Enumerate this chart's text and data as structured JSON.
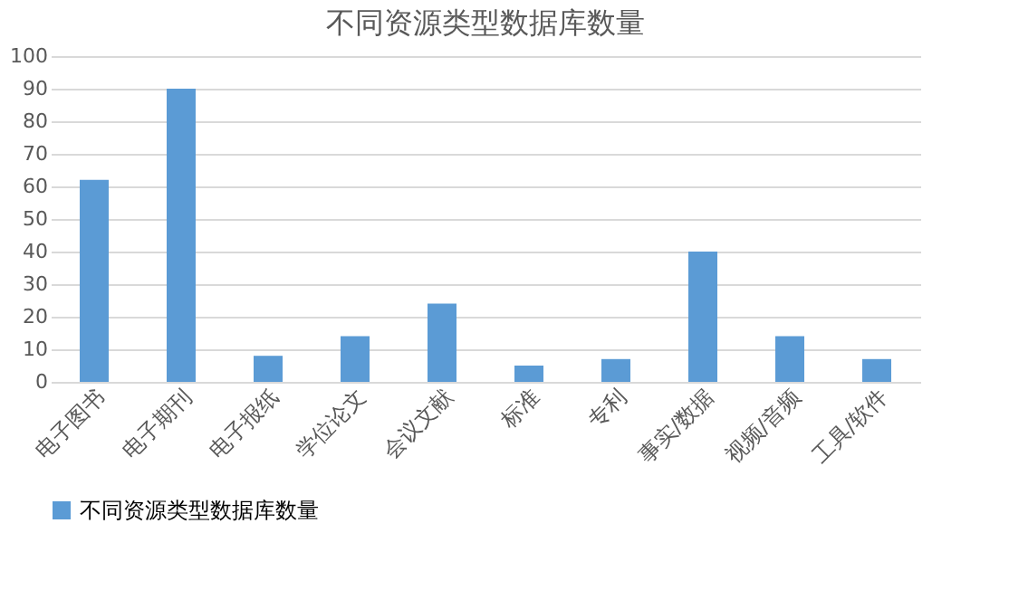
{
  "chart_data": {
    "type": "bar",
    "title": "不同资源类型数据库数量",
    "categories": [
      "电子图书",
      "电子期刊",
      "电子报纸",
      "学位论文",
      "会议文献",
      "标准",
      "专利",
      "事实/数据",
      "视频/音频",
      "工具/软件"
    ],
    "series": [
      {
        "name": "不同资源类型数据库数量",
        "color": "#5b9bd5",
        "values": [
          62,
          90,
          8,
          14,
          24,
          5,
          7,
          40,
          14,
          7
        ]
      }
    ],
    "ylim": [
      0,
      100
    ],
    "yticks": [
      0,
      10,
      20,
      30,
      40,
      50,
      60,
      70,
      80,
      90,
      100
    ],
    "grid": "y",
    "legend": "bottom"
  }
}
